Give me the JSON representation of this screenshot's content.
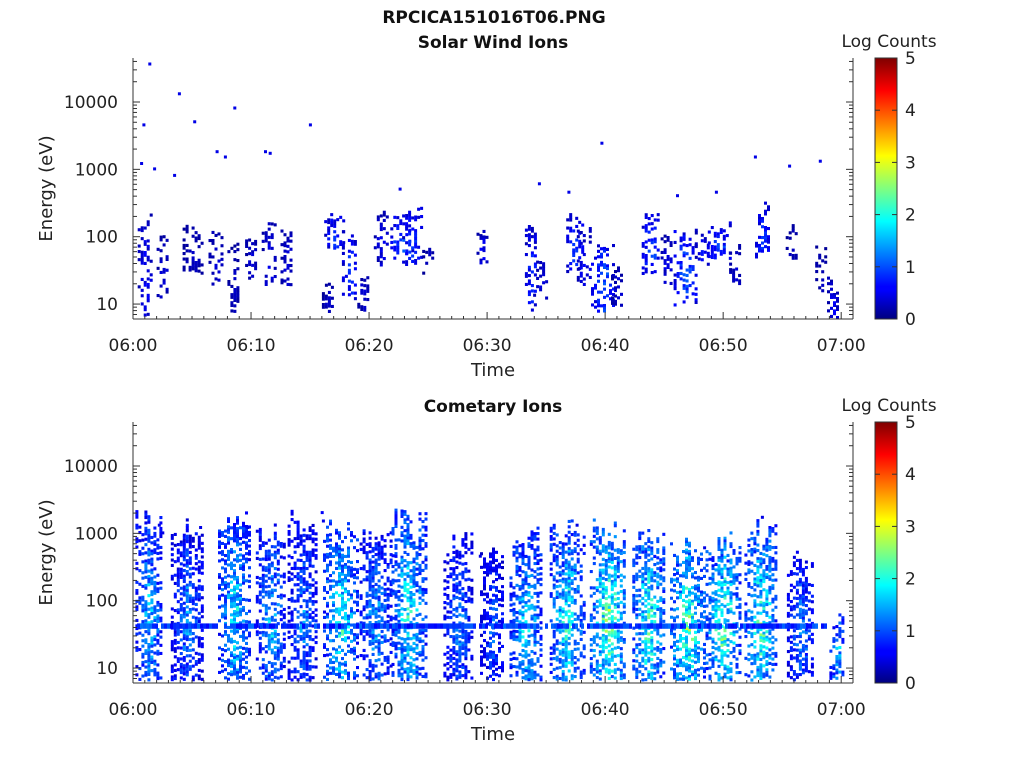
{
  "figure": {
    "title": "RPCICA151016T06.PNG"
  },
  "chart_data": [
    {
      "type": "heatmap",
      "title": "Solar Wind Ions",
      "xlabel": "Time",
      "ylabel": "Energy (eV)",
      "x_ticks": [
        "06:00",
        "06:10",
        "06:20",
        "06:30",
        "06:40",
        "06:50",
        "07:00"
      ],
      "y_ticks": [
        "10",
        "100",
        "1000",
        "10000"
      ],
      "y_scale": "log",
      "ylim": [
        6,
        45000
      ],
      "xlim_minutes": [
        0,
        61
      ],
      "colorbar": {
        "label": "Log Counts",
        "range": [
          0,
          5
        ],
        "ticks": [
          "0",
          "1",
          "2",
          "3",
          "4",
          "5"
        ]
      },
      "clusters": [
        [
          1,
          0.6,
          7,
          170,
          0.7
        ],
        [
          2.5,
          0.5,
          12,
          80,
          0.5
        ],
        [
          5,
          0.8,
          30,
          120,
          0.4
        ],
        [
          7,
          0.6,
          20,
          100,
          0.5
        ],
        [
          8.5,
          0.5,
          8,
          60,
          0.4
        ],
        [
          10,
          0.5,
          25,
          90,
          0.5
        ],
        [
          11.5,
          0.6,
          20,
          130,
          0.6
        ],
        [
          13,
          0.5,
          20,
          110,
          0.5
        ],
        [
          16.5,
          0.5,
          7,
          20,
          0.4
        ],
        [
          17,
          0.8,
          70,
          180,
          1.0
        ],
        [
          18.3,
          0.6,
          12,
          90,
          1.0
        ],
        [
          19.5,
          0.5,
          8,
          30,
          0.5
        ],
        [
          21,
          0.6,
          40,
          200,
          0.6
        ],
        [
          22.8,
          1.0,
          50,
          180,
          1.2
        ],
        [
          23.6,
          0.8,
          40,
          200,
          1.0
        ],
        [
          25,
          0.5,
          30,
          60,
          0.4
        ],
        [
          29.5,
          0.4,
          40,
          90,
          0.7
        ],
        [
          33.7,
          0.5,
          8,
          120,
          0.9
        ],
        [
          34.5,
          0.6,
          12,
          40,
          0.5
        ],
        [
          37.4,
          0.7,
          30,
          180,
          1.0
        ],
        [
          38.2,
          0.6,
          20,
          100,
          0.7
        ],
        [
          39.8,
          1.0,
          8,
          70,
          1.2
        ],
        [
          41,
          0.5,
          10,
          30,
          0.5
        ],
        [
          43.8,
          0.7,
          30,
          200,
          1.1
        ],
        [
          45.2,
          0.5,
          20,
          80,
          0.6
        ],
        [
          46.7,
          0.9,
          10,
          90,
          1.2
        ],
        [
          48.2,
          0.6,
          40,
          100,
          0.8
        ],
        [
          49.6,
          0.9,
          50,
          120,
          1.1
        ],
        [
          51,
          0.5,
          20,
          60,
          0.5
        ],
        [
          53.3,
          0.6,
          50,
          250,
          1.0
        ],
        [
          55.7,
          0.4,
          50,
          120,
          0.4
        ],
        [
          58.2,
          0.4,
          15,
          60,
          0.4
        ],
        [
          59.2,
          0.4,
          6,
          20,
          0.7
        ]
      ],
      "scatter": [
        [
          1.3,
          36000,
          0.5
        ],
        [
          3.8,
          13000,
          0.5
        ],
        [
          5.1,
          5000,
          0.5
        ],
        [
          8.5,
          8000,
          0.5
        ],
        [
          14.9,
          4500,
          0.5
        ],
        [
          0.8,
          4500,
          0.5
        ],
        [
          0.6,
          1200,
          0.5
        ],
        [
          1.7,
          1000,
          0.5
        ],
        [
          3.4,
          800,
          0.5
        ],
        [
          7.0,
          1800,
          0.5
        ],
        [
          7.7,
          1500,
          0.5
        ],
        [
          11.1,
          1800,
          0.5
        ],
        [
          11.5,
          1700,
          0.5
        ],
        [
          39.6,
          2400,
          0.5
        ],
        [
          52.6,
          1500,
          0.5
        ],
        [
          55.5,
          1100,
          0.5
        ],
        [
          58.1,
          1300,
          0.5
        ],
        [
          22.5,
          500,
          0.5
        ],
        [
          34.3,
          600,
          0.5
        ],
        [
          36.8,
          450,
          0.5
        ],
        [
          46.0,
          400,
          0.5
        ],
        [
          49.3,
          450,
          0.5
        ]
      ]
    },
    {
      "type": "heatmap",
      "title": "Cometary Ions",
      "xlabel": "Time",
      "ylabel": "Energy (eV)",
      "x_ticks": [
        "06:00",
        "06:10",
        "06:20",
        "06:30",
        "06:40",
        "06:50",
        "07:00"
      ],
      "y_ticks": [
        "10",
        "100",
        "1000",
        "10000"
      ],
      "y_scale": "log",
      "ylim": [
        6,
        45000
      ],
      "xlim_minutes": [
        0,
        61
      ],
      "colorbar": {
        "label": "Log Counts",
        "range": [
          0,
          5
        ],
        "ticks": [
          "0",
          "1",
          "2",
          "3",
          "4",
          "5"
        ]
      },
      "clusters": [
        [
          1.3,
          1.1,
          7,
          900,
          1.6
        ],
        [
          4.5,
          1.3,
          7,
          700,
          1.3
        ],
        [
          8.5,
          1.3,
          7,
          900,
          1.8
        ],
        [
          11.6,
          1.2,
          7,
          600,
          1.6
        ],
        [
          14.3,
          1.2,
          7,
          900,
          1.3
        ],
        [
          17.5,
          1.4,
          7,
          700,
          2.0
        ],
        [
          20.5,
          1.3,
          7,
          600,
          1.5
        ],
        [
          23.3,
          1.4,
          7,
          900,
          2.0
        ],
        [
          27.5,
          1.2,
          7,
          500,
          1.3
        ],
        [
          30.4,
          1.0,
          7,
          300,
          1.1
        ],
        [
          33.2,
          1.3,
          7,
          500,
          1.8
        ],
        [
          36.7,
          1.4,
          7,
          700,
          2.0
        ],
        [
          40.2,
          1.5,
          7,
          600,
          2.4
        ],
        [
          43.6,
          1.3,
          7,
          500,
          2.2
        ],
        [
          46.9,
          1.4,
          7,
          400,
          2.4
        ],
        [
          49.9,
          1.4,
          7,
          400,
          2.3
        ],
        [
          53.1,
          1.3,
          7,
          600,
          2.2
        ],
        [
          56.5,
          1.1,
          7,
          200,
          1.3
        ],
        [
          59.6,
          0.6,
          7,
          40,
          1.7
        ]
      ],
      "band_count_level": 1.0,
      "scatter": [
        [
          15.9,
          2000,
          0.6
        ],
        [
          2.1,
          1300,
          0.5
        ],
        [
          2.4,
          1000,
          0.5
        ],
        [
          5.6,
          1200,
          0.5
        ],
        [
          9.6,
          1200,
          0.5
        ],
        [
          37.5,
          1300,
          0.5
        ],
        [
          53.2,
          1700,
          0.5
        ],
        [
          16.0,
          1500,
          0.5
        ],
        [
          29.3,
          450,
          0.5
        ],
        [
          48.3,
          600,
          0.5
        ]
      ]
    }
  ]
}
